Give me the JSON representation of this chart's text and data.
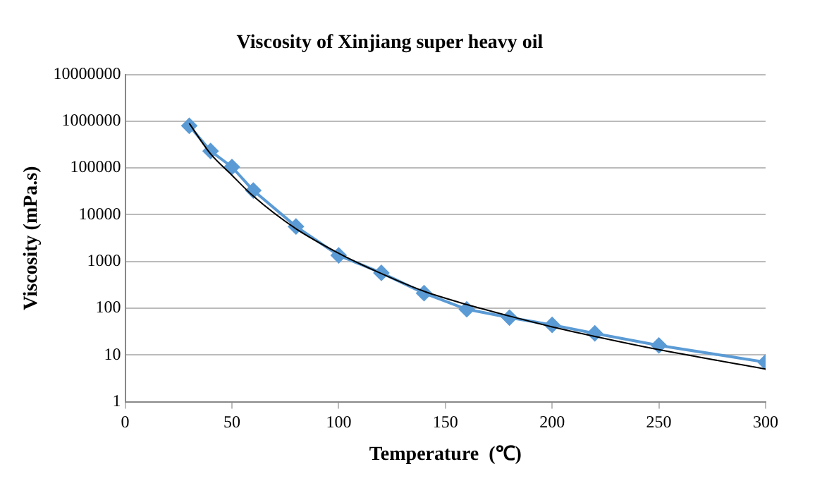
{
  "chart_data": {
    "type": "line",
    "title": "Viscosity of Xinjiang super heavy oil",
    "xlabel": "Temperature  (℃)",
    "ylabel": "Viscosity (mPa.s)",
    "series": [
      {
        "color": "#5b9bd5",
        "marker": "diamond",
        "x": [
          30,
          40,
          50,
          60,
          80,
          100,
          120,
          140,
          160,
          180,
          200,
          220,
          250,
          300
        ],
        "values": [
          800000,
          230000,
          105000,
          33000,
          5600,
          1350,
          570,
          210,
          95,
          63,
          44,
          29,
          16,
          7
        ]
      },
      {
        "type": "line",
        "color": "#000000",
        "marker": "none",
        "x": [
          30,
          40,
          50,
          60,
          80,
          100,
          120,
          140,
          160,
          180,
          200,
          220,
          250,
          300
        ],
        "values": [
          900000,
          200000,
          70000,
          25000,
          5000,
          1500,
          550,
          230,
          120,
          68,
          40,
          25,
          13,
          5
        ]
      }
    ],
    "xlim": [
      0,
      300
    ],
    "xticks": [
      0,
      50,
      100,
      150,
      200,
      250,
      300
    ],
    "ylim": [
      1,
      10000000
    ],
    "yticks": [
      1,
      10,
      100,
      1000,
      10000,
      100000,
      1000000,
      10000000
    ],
    "log": "y",
    "grid": "y",
    "legend": false
  }
}
